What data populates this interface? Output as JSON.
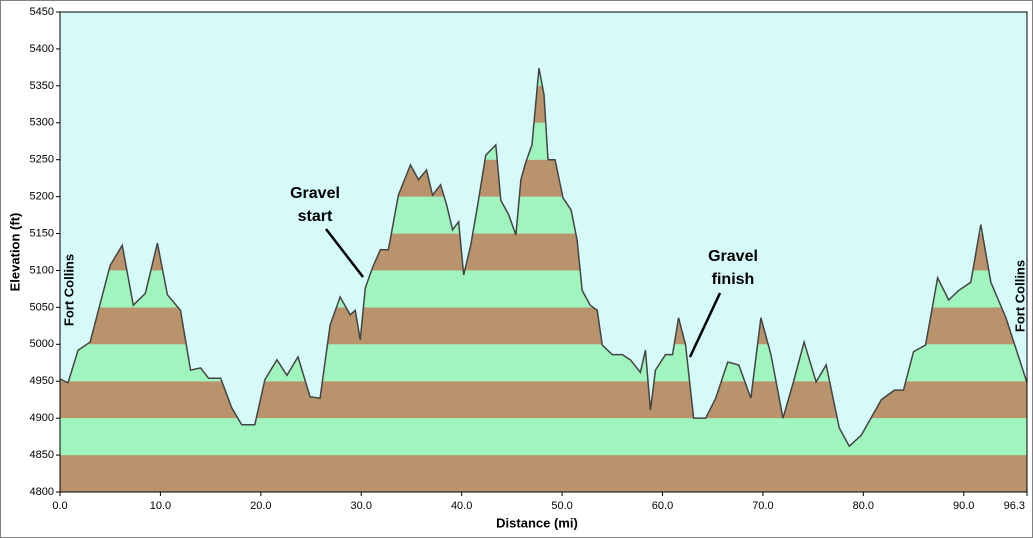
{
  "chart_data": {
    "type": "area",
    "x_label": "Distance   (mi)",
    "y_label": "Elevation (ft)",
    "start_label": "Fort Collins",
    "end_label": "Fort Collins",
    "annotations": [
      {
        "lines": [
          "Gravel",
          "start"
        ]
      },
      {
        "lines": [
          "Gravel",
          "finish"
        ]
      }
    ],
    "background": "#d6fafa",
    "band_colors": [
      "#b8936b",
      "#9ff5bd"
    ],
    "line_color": "#444444",
    "x": [
      0,
      0.8,
      1.8,
      3.0,
      5.0,
      6.2,
      7.3,
      8.5,
      9.7,
      10.7,
      12.0,
      13.0,
      14.0,
      14.8,
      16.0,
      17.1,
      18.1,
      19.4,
      20.4,
      21.6,
      22.6,
      23.7,
      24.9,
      25.9,
      26.9,
      27.9,
      28.9,
      29.4,
      29.9,
      30.4,
      31.1,
      31.9,
      32.7,
      33.7,
      34.9,
      35.7,
      36.5,
      37.1,
      37.9,
      38.5,
      39.1,
      39.7,
      40.2,
      40.9,
      41.6,
      42.4,
      43.4,
      43.9,
      44.7,
      45.4,
      45.9,
      46.4,
      47.0,
      47.7,
      48.2,
      48.6,
      49.3,
      50.1,
      50.9,
      51.5,
      52.0,
      52.8,
      53.5,
      54.0,
      55.0,
      56.0,
      56.8,
      57.8,
      58.3,
      58.8,
      59.3,
      60.3,
      61.0,
      61.6,
      62.3,
      63.1,
      64.3,
      65.3,
      66.5,
      67.6,
      68.8,
      69.8,
      70.8,
      72.0,
      73.1,
      74.1,
      75.3,
      76.3,
      77.6,
      78.6,
      79.8,
      81.8,
      83.1,
      84.0,
      85.0,
      86.2,
      87.4,
      88.5,
      89.5,
      90.7,
      91.7,
      92.7,
      94.2,
      96.3
    ],
    "values": [
      4953,
      4948,
      4992,
      5003,
      5107,
      5134,
      5053,
      5069,
      5137,
      5067,
      5046,
      4965,
      4968,
      4954,
      4954,
      4914,
      4891,
      4891,
      4952,
      4979,
      4958,
      4983,
      4929,
      4927,
      5026,
      5064,
      5040,
      5046,
      5006,
      5076,
      5103,
      5128,
      5128,
      5202,
      5243,
      5223,
      5236,
      5202,
      5216,
      5189,
      5155,
      5166,
      5094,
      5134,
      5189,
      5256,
      5270,
      5195,
      5175,
      5148,
      5223,
      5247,
      5270,
      5374,
      5338,
      5250,
      5250,
      5198,
      5182,
      5141,
      5073,
      5053,
      5046,
      4999,
      4986,
      4986,
      4979,
      4962,
      4992,
      4911,
      4965,
      4986,
      4986,
      5036,
      4999,
      4900,
      4900,
      4927,
      4976,
      4972,
      4927,
      5036,
      4986,
      4900,
      4952,
      5003,
      4949,
      4972,
      4887,
      4862,
      4877,
      4925,
      4938,
      4938,
      4990,
      4999,
      5090,
      5060,
      5073,
      5084,
      5162,
      5084,
      5036,
      4948
    ],
    "xlim": [
      0,
      96.3
    ],
    "xticks": [
      {
        "value": 0,
        "label": "0.0"
      },
      {
        "value": 10,
        "label": "10.0"
      },
      {
        "value": 20,
        "label": "20.0"
      },
      {
        "value": 30,
        "label": "30.0"
      },
      {
        "value": 40,
        "label": "40.0"
      },
      {
        "value": 50,
        "label": "50.0"
      },
      {
        "value": 60,
        "label": "60.0"
      },
      {
        "value": 70,
        "label": "70.0"
      },
      {
        "value": 80,
        "label": "80.0"
      },
      {
        "value": 90,
        "label": "90.0"
      },
      96.3
    ],
    "ylim": [
      4800,
      5450
    ],
    "yticks": [
      4800,
      4850,
      4900,
      4950,
      5000,
      5050,
      5100,
      5150,
      5200,
      5250,
      5300,
      5350,
      5400,
      5450
    ]
  }
}
